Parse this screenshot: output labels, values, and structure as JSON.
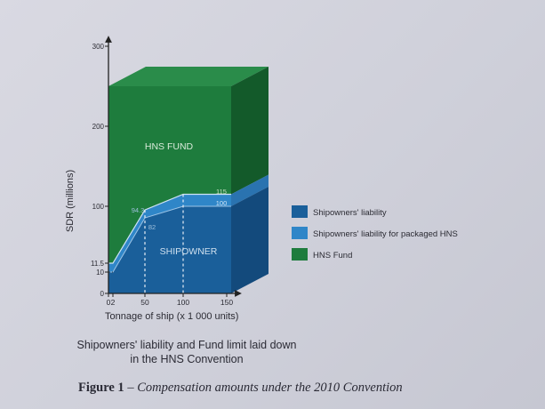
{
  "chart_data": {
    "type": "area",
    "ylabel": "SDR (millions)",
    "xlabel": "Tonnage of ship (x 1 000 units)",
    "x_ticks": [
      "0",
      "2",
      "50",
      "100",
      "150"
    ],
    "x_tick_values": [
      0,
      2,
      50,
      100,
      150
    ],
    "y_ticks": [
      "0",
      "10",
      "11.5",
      "100",
      "200",
      "300"
    ],
    "y_tick_values": [
      0,
      10,
      11.5,
      100,
      200,
      300
    ],
    "ylim": [
      0,
      300
    ],
    "xlim": [
      0,
      160
    ],
    "x": [
      0,
      2,
      50,
      100,
      160
    ],
    "series": [
      {
        "name": "Shipowners' liability",
        "values": [
          10,
          10,
          82,
          100,
          100
        ]
      },
      {
        "name": "Shipowners' liability for packaged HNS",
        "values": [
          11.5,
          11.5,
          94.3,
          115,
          115
        ]
      },
      {
        "name": "HNS Fund",
        "values": [
          250,
          250,
          250,
          250,
          250
        ]
      }
    ],
    "annotations": {
      "hns_fund": "HNS FUND",
      "shipowner": "SHIPOWNER",
      "pt_94_3": "94.3",
      "pt_82": "82",
      "pt_115": "115",
      "pt_100": "100"
    },
    "legend_position": "right"
  },
  "colors": {
    "shipowner": "#1a5f9a",
    "packaged": "#2f86c8",
    "fund": "#1e7c3d",
    "fund_side": "#135a2a",
    "ship_side": "#134a7c"
  },
  "caption": {
    "line1": "Shipowners' liability and Fund limit laid down",
    "line2": "in the HNS Convention"
  },
  "figure_caption": {
    "label": "Figure 1",
    "dash": " – ",
    "text": "Compensation amounts under the 2010 Convention"
  }
}
